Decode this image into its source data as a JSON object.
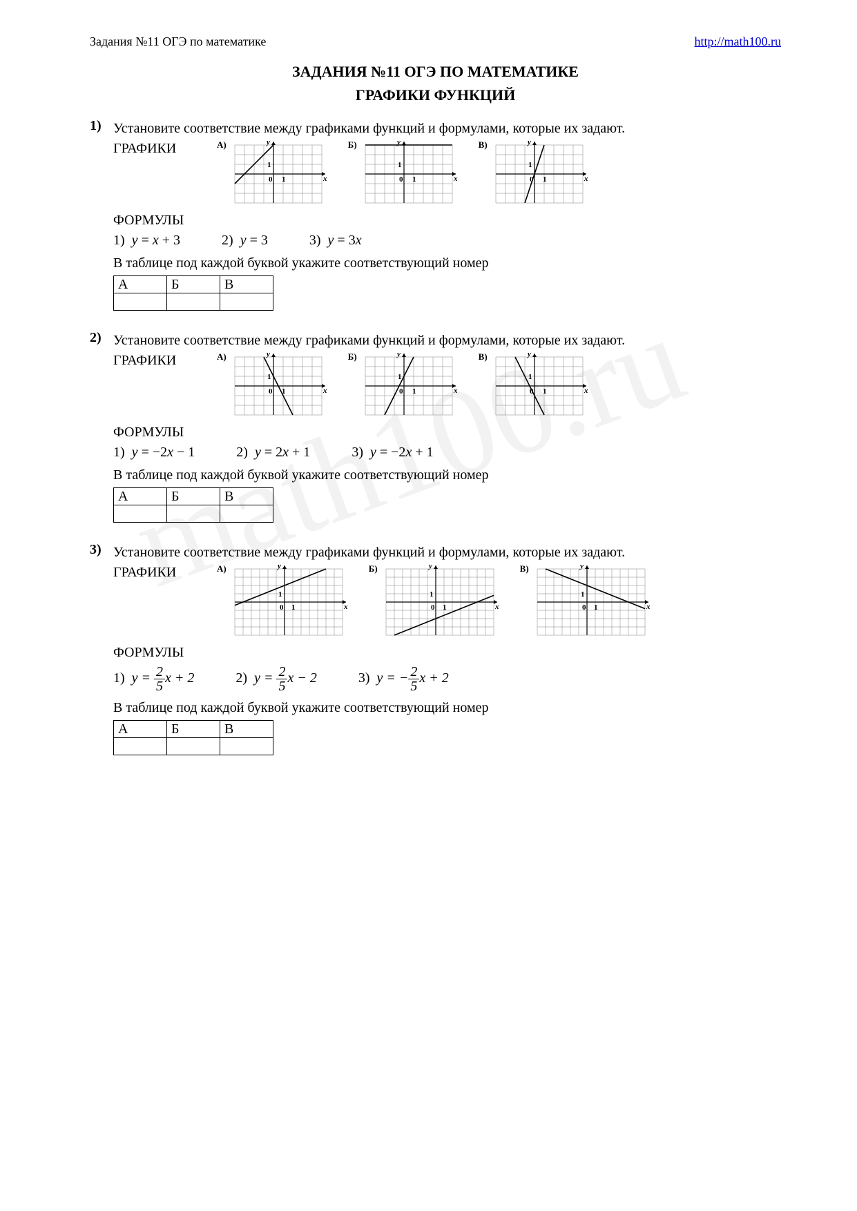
{
  "header": {
    "left": "Задания №11  ОГЭ по математике",
    "right": "http://math100.ru"
  },
  "watermark": "math100.ru",
  "title1": "ЗАДАНИЯ №11 ОГЭ ПО МАТЕМАТИКЕ",
  "title2": "ГРАФИКИ ФУНКЦИЙ",
  "labels": {
    "graphs": "ГРАФИКИ",
    "formulas": "ФОРМУЛЫ",
    "instruction": "В таблице под каждой буквой укажите соответствующий номер",
    "ansHeaders": [
      "А",
      "Б",
      "В"
    ],
    "graphLetters": [
      "А)",
      "Б)",
      "В)"
    ]
  },
  "grid": {
    "stroke": "#808080",
    "strokeWidth": 0.5,
    "axis": "#000000",
    "axisWidth": 1.2,
    "lineColor": "#000000",
    "lineWidth": 1.6,
    "labelFont": 11
  },
  "tasks": [
    {
      "num": "1)",
      "prompt": "Установите соответствие между графиками функций и формулами, которые их задают.",
      "grid": {
        "xMin": -4,
        "xMax": 5,
        "yMin": -3,
        "yMax": 3,
        "cell": 14,
        "xTrim": 0
      },
      "graphs": [
        {
          "slope": 1,
          "intercept": 3
        },
        {
          "slope": 0,
          "intercept": 3
        },
        {
          "slope": 3,
          "intercept": 0
        }
      ],
      "formulas": [
        {
          "n": "1)",
          "tex": "y = x + 3"
        },
        {
          "n": "2)",
          "tex": "y = 3"
        },
        {
          "n": "3)",
          "tex": "y = 3x"
        }
      ]
    },
    {
      "num": "2)",
      "prompt": "Установите соответствие между графиками функций и формулами, которые их задают.",
      "grid": {
        "xMin": -4,
        "xMax": 5,
        "yMin": -3,
        "yMax": 3,
        "cell": 14,
        "xTrim": 0
      },
      "graphs": [
        {
          "slope": -2,
          "intercept": 1
        },
        {
          "slope": 2,
          "intercept": 1
        },
        {
          "slope": -2,
          "intercept": -1
        }
      ],
      "formulas": [
        {
          "n": "1)",
          "tex": "y = −2x − 1"
        },
        {
          "n": "2)",
          "tex": "y = 2x + 1"
        },
        {
          "n": "3)",
          "tex": "y = −2x + 1"
        }
      ]
    },
    {
      "num": "3)",
      "prompt": "Установите соответствие между графиками функций и формулами, которые их задают.",
      "grid": {
        "xMin": -6,
        "xMax": 7,
        "yMin": -4,
        "yMax": 4,
        "cell": 12,
        "xTrim": 0
      },
      "graphs": [
        {
          "slope": 0.4,
          "intercept": 2
        },
        {
          "slope": 0.4,
          "intercept": -2
        },
        {
          "slope": -0.4,
          "intercept": 2
        }
      ],
      "formulasFraction": true,
      "formulas": [
        {
          "n": "1)",
          "pre": "y = ",
          "num": "2",
          "den": "5",
          "post": "x + 2",
          "neg": false
        },
        {
          "n": "2)",
          "pre": "y = ",
          "num": "2",
          "den": "5",
          "post": "x − 2",
          "neg": false
        },
        {
          "n": "3)",
          "pre": "y = −",
          "num": "2",
          "den": "5",
          "post": "x + 2",
          "neg": true
        }
      ]
    }
  ]
}
